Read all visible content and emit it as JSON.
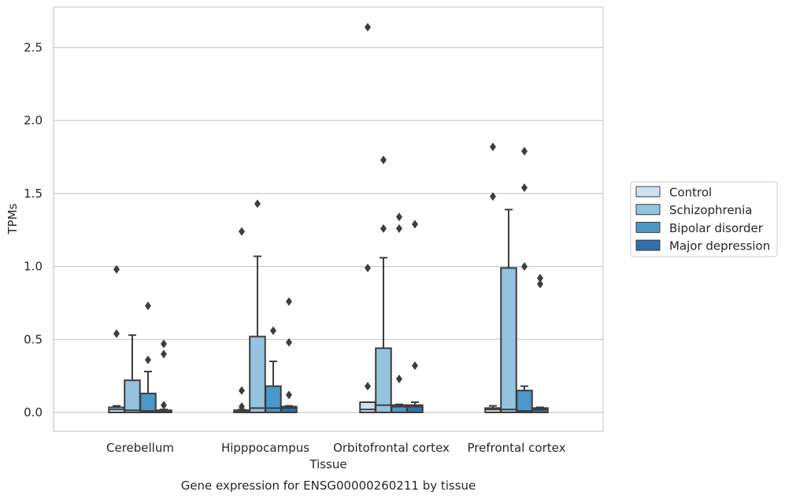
{
  "chart_data": {
    "type": "box",
    "xlabel": "Tissue",
    "ylabel": "TPMs",
    "caption": "Gene expression for ENSG00000260211 by tissue",
    "ylim": [
      -0.13,
      2.78
    ],
    "yticks": [
      0.0,
      0.5,
      1.0,
      1.5,
      2.0,
      2.5
    ],
    "ytick_labels": [
      "0.0",
      "0.5",
      "1.0",
      "1.5",
      "2.0",
      "2.5"
    ],
    "grid": "horizontal",
    "legend_position": "right",
    "categories": [
      "Cerebellum",
      "Hipppocampus",
      "Orbitofrontal cortex",
      "Prefrontal cortex"
    ],
    "series": [
      {
        "name": "Control",
        "color": "#d0e1f2",
        "boxes": [
          {
            "whisker_low": 0.0,
            "q1": 0.0,
            "median": 0.02,
            "q3": 0.035,
            "whisker_high": 0.045,
            "outliers": [
              0.54,
              0.98
            ]
          },
          {
            "whisker_low": 0.0,
            "q1": 0.0,
            "median": 0.005,
            "q3": 0.015,
            "whisker_high": 0.02,
            "outliers": [
              0.04,
              0.15,
              1.24
            ]
          },
          {
            "whisker_low": 0.0,
            "q1": 0.0,
            "median": 0.02,
            "q3": 0.07,
            "whisker_high": 0.07,
            "outliers": [
              0.18,
              0.99,
              2.64
            ]
          },
          {
            "whisker_low": 0.0,
            "q1": 0.0,
            "median": 0.02,
            "q3": 0.03,
            "whisker_high": 0.045,
            "outliers": [
              1.48,
              1.82
            ]
          }
        ]
      },
      {
        "name": "Schizophrenia",
        "color": "#94c4df",
        "boxes": [
          {
            "whisker_low": 0.0,
            "q1": 0.0,
            "median": 0.015,
            "q3": 0.22,
            "whisker_high": 0.53,
            "outliers": []
          },
          {
            "whisker_low": 0.0,
            "q1": 0.0,
            "median": 0.03,
            "q3": 0.52,
            "whisker_high": 1.07,
            "outliers": [
              1.43
            ]
          },
          {
            "whisker_low": 0.0,
            "q1": 0.0,
            "median": 0.05,
            "q3": 0.44,
            "whisker_high": 1.06,
            "outliers": [
              1.26,
              1.73
            ]
          },
          {
            "whisker_low": 0.0,
            "q1": 0.0,
            "median": 0.02,
            "q3": 0.99,
            "whisker_high": 1.39,
            "outliers": []
          }
        ]
      },
      {
        "name": "Bipolar disorder",
        "color": "#4a98c9",
        "boxes": [
          {
            "whisker_low": 0.0,
            "q1": 0.0,
            "median": 0.01,
            "q3": 0.13,
            "whisker_high": 0.28,
            "outliers": [
              0.36,
              0.73
            ]
          },
          {
            "whisker_low": 0.0,
            "q1": 0.0,
            "median": 0.03,
            "q3": 0.18,
            "whisker_high": 0.35,
            "outliers": [
              0.56
            ]
          },
          {
            "whisker_low": 0.0,
            "q1": 0.0,
            "median": 0.04,
            "q3": 0.05,
            "whisker_high": 0.055,
            "outliers": [
              0.23,
              1.26,
              1.34
            ]
          },
          {
            "whisker_low": 0.0,
            "q1": 0.0,
            "median": 0.01,
            "q3": 0.15,
            "whisker_high": 0.18,
            "outliers": [
              1.0,
              1.54,
              1.79
            ]
          }
        ]
      },
      {
        "name": "Major depression",
        "color": "#2e6fae",
        "boxes": [
          {
            "whisker_low": 0.0,
            "q1": 0.0,
            "median": 0.005,
            "q3": 0.015,
            "whisker_high": 0.02,
            "outliers": [
              0.05,
              0.4,
              0.47
            ]
          },
          {
            "whisker_low": 0.0,
            "q1": 0.0,
            "median": 0.03,
            "q3": 0.04,
            "whisker_high": 0.045,
            "outliers": [
              0.12,
              0.48,
              0.76
            ]
          },
          {
            "whisker_low": 0.0,
            "q1": 0.0,
            "median": 0.04,
            "q3": 0.05,
            "whisker_high": 0.07,
            "outliers": [
              0.32,
              1.29
            ]
          },
          {
            "whisker_low": 0.0,
            "q1": 0.0,
            "median": 0.02,
            "q3": 0.03,
            "whisker_high": 0.035,
            "outliers": [
              0.88,
              0.92
            ]
          }
        ]
      }
    ]
  }
}
